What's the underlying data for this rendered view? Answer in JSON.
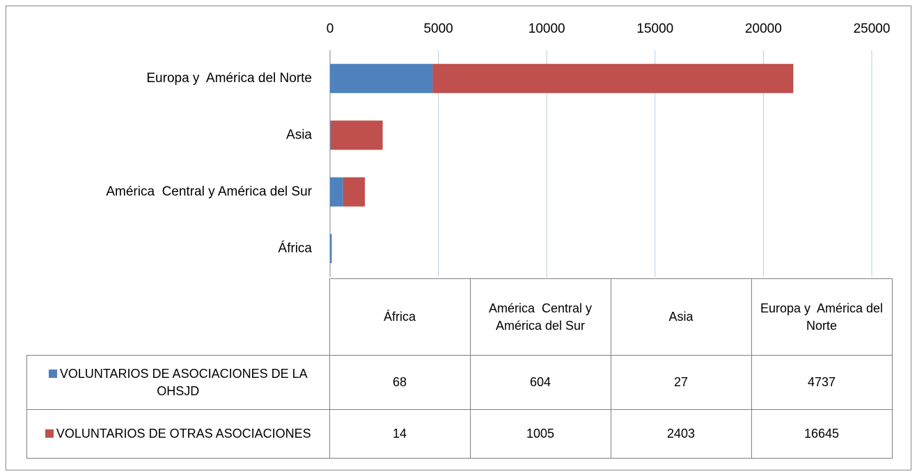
{
  "chart_data": {
    "type": "bar",
    "orientation": "horizontal",
    "stacked": true,
    "categories": [
      "África",
      "América  Central y América del Sur",
      "Asia",
      "Europa y  América del Norte"
    ],
    "series": [
      {
        "name": "VOLUNTARIOS DE ASOCIACIONES DE LA OHSJD",
        "color": "#4f81bd",
        "values": [
          68,
          604,
          27,
          4737
        ]
      },
      {
        "name": "VOLUNTARIOS DE OTRAS ASOCIACIONES",
        "color": "#c0504d",
        "values": [
          14,
          1005,
          2403,
          16645
        ]
      }
    ],
    "xlim": [
      0,
      25000
    ],
    "xticks": [
      0,
      5000,
      10000,
      15000,
      20000,
      25000
    ],
    "grid": true,
    "data_table": true
  }
}
